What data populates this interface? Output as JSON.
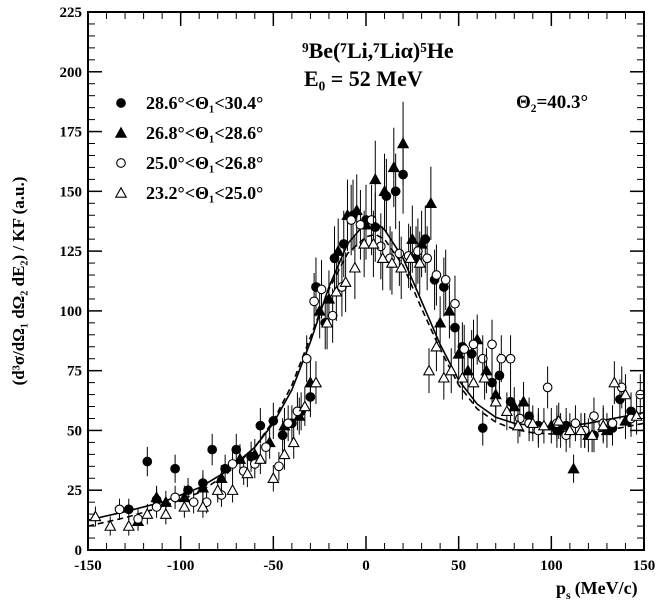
{
  "chart_data": {
    "type": "scatter",
    "xlabel_main": "p",
    "xlabel_sub": "s",
    "xlabel_unit": "(MeV/c)",
    "ylabel": "(d³σ/dΩ₁ dΩ₂ dE₂) / KF (a.u.)",
    "xlim": [
      -150,
      150
    ],
    "ylim": [
      0,
      225
    ],
    "x_ticks": [
      -150,
      -100,
      -50,
      0,
      50,
      100,
      150
    ],
    "x_tick_labels": [
      "-150",
      "-100",
      "-50",
      "0",
      "50",
      "100",
      "150"
    ],
    "y_ticks": [
      0,
      25,
      50,
      75,
      100,
      125,
      150,
      175,
      200,
      225
    ],
    "y_tick_labels": [
      "0",
      "25",
      "50",
      "75",
      "100",
      "125",
      "150",
      "175",
      "200",
      "225"
    ],
    "reaction": "⁹Be(⁷Li,⁷Liα)⁵He",
    "energy": "E₀ = 52 MeV",
    "theta2": "Θ₂=40.3°",
    "legend_position": "top-left",
    "grid": false,
    "series": [
      {
        "name": "28.6°<Θ₁<30.4°",
        "marker": "circle-filled",
        "points": [
          [
            -128,
            17
          ],
          [
            -118,
            37
          ],
          [
            -113,
            21
          ],
          [
            -103,
            34
          ],
          [
            -96,
            25
          ],
          [
            -88,
            28
          ],
          [
            -83,
            42
          ],
          [
            -76,
            34
          ],
          [
            -70,
            42
          ],
          [
            -62,
            39
          ],
          [
            -57,
            52
          ],
          [
            -50,
            54
          ],
          [
            -45,
            48
          ],
          [
            -40,
            53
          ],
          [
            -35,
            58
          ],
          [
            -30,
            64
          ],
          [
            -27,
            110
          ],
          [
            -22,
            95
          ],
          [
            -17,
            122
          ],
          [
            -12,
            128
          ],
          [
            -7,
            140
          ],
          [
            0,
            138
          ],
          [
            5,
            135
          ],
          [
            11,
            148
          ],
          [
            16,
            150
          ],
          [
            20,
            157
          ],
          [
            27,
            122
          ],
          [
            32,
            130
          ],
          [
            37,
            113
          ],
          [
            42,
            110
          ],
          [
            48,
            93
          ],
          [
            52,
            85
          ],
          [
            57,
            82
          ],
          [
            63,
            51
          ],
          [
            68,
            70
          ],
          [
            72,
            73
          ],
          [
            78,
            62
          ],
          [
            88,
            56
          ],
          [
            93,
            52
          ],
          [
            103,
            50
          ],
          [
            108,
            52
          ],
          [
            118,
            50
          ],
          [
            123,
            48
          ],
          [
            133,
            51
          ],
          [
            137,
            63
          ],
          [
            143,
            58
          ]
        ]
      },
      {
        "name": "26.8°<Θ₁<28.6°",
        "marker": "triangle-filled",
        "points": [
          [
            -123,
            12
          ],
          [
            -113,
            22
          ],
          [
            -108,
            20
          ],
          [
            -98,
            22
          ],
          [
            -88,
            26
          ],
          [
            -78,
            30
          ],
          [
            -68,
            38
          ],
          [
            -60,
            40
          ],
          [
            -52,
            45
          ],
          [
            -44,
            52
          ],
          [
            -36,
            56
          ],
          [
            -30,
            70
          ],
          [
            -25,
            100
          ],
          [
            -20,
            105
          ],
          [
            -15,
            125
          ],
          [
            -10,
            140
          ],
          [
            -5,
            142
          ],
          [
            0,
            136
          ],
          [
            5,
            155
          ],
          [
            10,
            150
          ],
          [
            15,
            160
          ],
          [
            20,
            170
          ],
          [
            25,
            130
          ],
          [
            30,
            128
          ],
          [
            35,
            145
          ],
          [
            40,
            95
          ],
          [
            45,
            100
          ],
          [
            50,
            82
          ],
          [
            55,
            75
          ],
          [
            60,
            88
          ],
          [
            65,
            75
          ],
          [
            70,
            65
          ],
          [
            80,
            60
          ],
          [
            85,
            62
          ],
          [
            100,
            52
          ],
          [
            105,
            50
          ],
          [
            112,
            34
          ],
          [
            120,
            48
          ],
          [
            130,
            50
          ],
          [
            140,
            54
          ]
        ]
      },
      {
        "name": "25.0°<Θ₁<26.8°",
        "marker": "circle-open",
        "points": [
          [
            -133,
            17
          ],
          [
            -123,
            13
          ],
          [
            -113,
            18
          ],
          [
            -103,
            22
          ],
          [
            -93,
            20
          ],
          [
            -86,
            20
          ],
          [
            -78,
            23
          ],
          [
            -72,
            36
          ],
          [
            -66,
            33
          ],
          [
            -60,
            36
          ],
          [
            -54,
            43
          ],
          [
            -47,
            35
          ],
          [
            -42,
            53
          ],
          [
            -37,
            58
          ],
          [
            -32,
            80
          ],
          [
            -28,
            104
          ],
          [
            -24,
            109
          ],
          [
            -18,
            98
          ],
          [
            -13,
            110
          ],
          [
            -8,
            138
          ],
          [
            -3,
            136
          ],
          [
            3,
            138
          ],
          [
            8,
            127
          ],
          [
            13,
            122
          ],
          [
            18,
            124
          ],
          [
            23,
            123
          ],
          [
            28,
            125
          ],
          [
            33,
            122
          ],
          [
            38,
            115
          ],
          [
            43,
            113
          ],
          [
            48,
            103
          ],
          [
            53,
            84
          ],
          [
            58,
            86
          ],
          [
            63,
            80
          ],
          [
            68,
            86
          ],
          [
            73,
            80
          ],
          [
            78,
            80
          ],
          [
            83,
            55
          ],
          [
            88,
            53
          ],
          [
            93,
            50
          ],
          [
            98,
            68
          ],
          [
            103,
            53
          ],
          [
            108,
            48
          ],
          [
            113,
            53
          ],
          [
            118,
            50
          ],
          [
            123,
            56
          ],
          [
            128,
            53
          ],
          [
            133,
            53
          ],
          [
            138,
            68
          ],
          [
            143,
            55
          ],
          [
            148,
            65
          ]
        ]
      },
      {
        "name": "23.2°<Θ₁<25.0°",
        "marker": "triangle-open",
        "points": [
          [
            -146,
            14
          ],
          [
            -138,
            10
          ],
          [
            -128,
            10
          ],
          [
            -118,
            15
          ],
          [
            -108,
            15
          ],
          [
            -98,
            18
          ],
          [
            -88,
            18
          ],
          [
            -80,
            25
          ],
          [
            -72,
            25
          ],
          [
            -64,
            32
          ],
          [
            -57,
            38
          ],
          [
            -50,
            30
          ],
          [
            -44,
            40
          ],
          [
            -39,
            45
          ],
          [
            -33,
            60
          ],
          [
            -27,
            70
          ],
          [
            -21,
            95
          ],
          [
            -16,
            108
          ],
          [
            -11,
            112
          ],
          [
            -6,
            118
          ],
          [
            -1,
            128
          ],
          [
            4,
            128
          ],
          [
            9,
            122
          ],
          [
            14,
            120
          ],
          [
            19,
            118
          ],
          [
            24,
            122
          ],
          [
            29,
            120
          ],
          [
            34,
            75
          ],
          [
            38,
            85
          ],
          [
            42,
            72
          ],
          [
            46,
            75
          ],
          [
            52,
            72
          ],
          [
            58,
            70
          ],
          [
            64,
            72
          ],
          [
            70,
            62
          ],
          [
            76,
            58
          ],
          [
            82,
            52
          ],
          [
            90,
            53
          ],
          [
            96,
            52
          ],
          [
            104,
            54
          ],
          [
            110,
            50
          ],
          [
            116,
            50
          ],
          [
            122,
            48
          ],
          [
            128,
            52
          ],
          [
            134,
            70
          ],
          [
            140,
            65
          ],
          [
            146,
            56
          ]
        ]
      }
    ],
    "curves": [
      {
        "style": "solid",
        "points": [
          [
            -150,
            12.5
          ],
          [
            -130,
            16
          ],
          [
            -110,
            20
          ],
          [
            -90,
            26
          ],
          [
            -75,
            33
          ],
          [
            -60,
            43
          ],
          [
            -50,
            53
          ],
          [
            -40,
            67
          ],
          [
            -30,
            87
          ],
          [
            -20,
            110
          ],
          [
            -10,
            128
          ],
          [
            0,
            137
          ],
          [
            5,
            137
          ],
          [
            10,
            134
          ],
          [
            20,
            122
          ],
          [
            30,
            104
          ],
          [
            40,
            86
          ],
          [
            50,
            71
          ],
          [
            60,
            61
          ],
          [
            70,
            55.5
          ],
          [
            80,
            53
          ],
          [
            90,
            52
          ],
          [
            100,
            51.5
          ],
          [
            110,
            52
          ],
          [
            120,
            53
          ],
          [
            130,
            54.5
          ],
          [
            140,
            56
          ],
          [
            150,
            57.5
          ]
        ]
      },
      {
        "style": "dashed",
        "points": [
          [
            -150,
            10
          ],
          [
            -130,
            13.5
          ],
          [
            -110,
            18
          ],
          [
            -90,
            24
          ],
          [
            -75,
            32
          ],
          [
            -60,
            43
          ],
          [
            -50,
            54
          ],
          [
            -40,
            69
          ],
          [
            -30,
            89
          ],
          [
            -20,
            109
          ],
          [
            -10,
            124
          ],
          [
            0,
            131
          ],
          [
            5,
            132
          ],
          [
            10,
            130
          ],
          [
            20,
            119
          ],
          [
            30,
            101
          ],
          [
            40,
            84
          ],
          [
            50,
            69
          ],
          [
            60,
            59
          ],
          [
            70,
            53.5
          ],
          [
            80,
            50.5
          ],
          [
            90,
            49
          ],
          [
            100,
            48.5
          ],
          [
            110,
            48.5
          ],
          [
            120,
            49
          ],
          [
            130,
            50
          ],
          [
            140,
            51.5
          ],
          [
            150,
            53
          ]
        ]
      }
    ]
  }
}
